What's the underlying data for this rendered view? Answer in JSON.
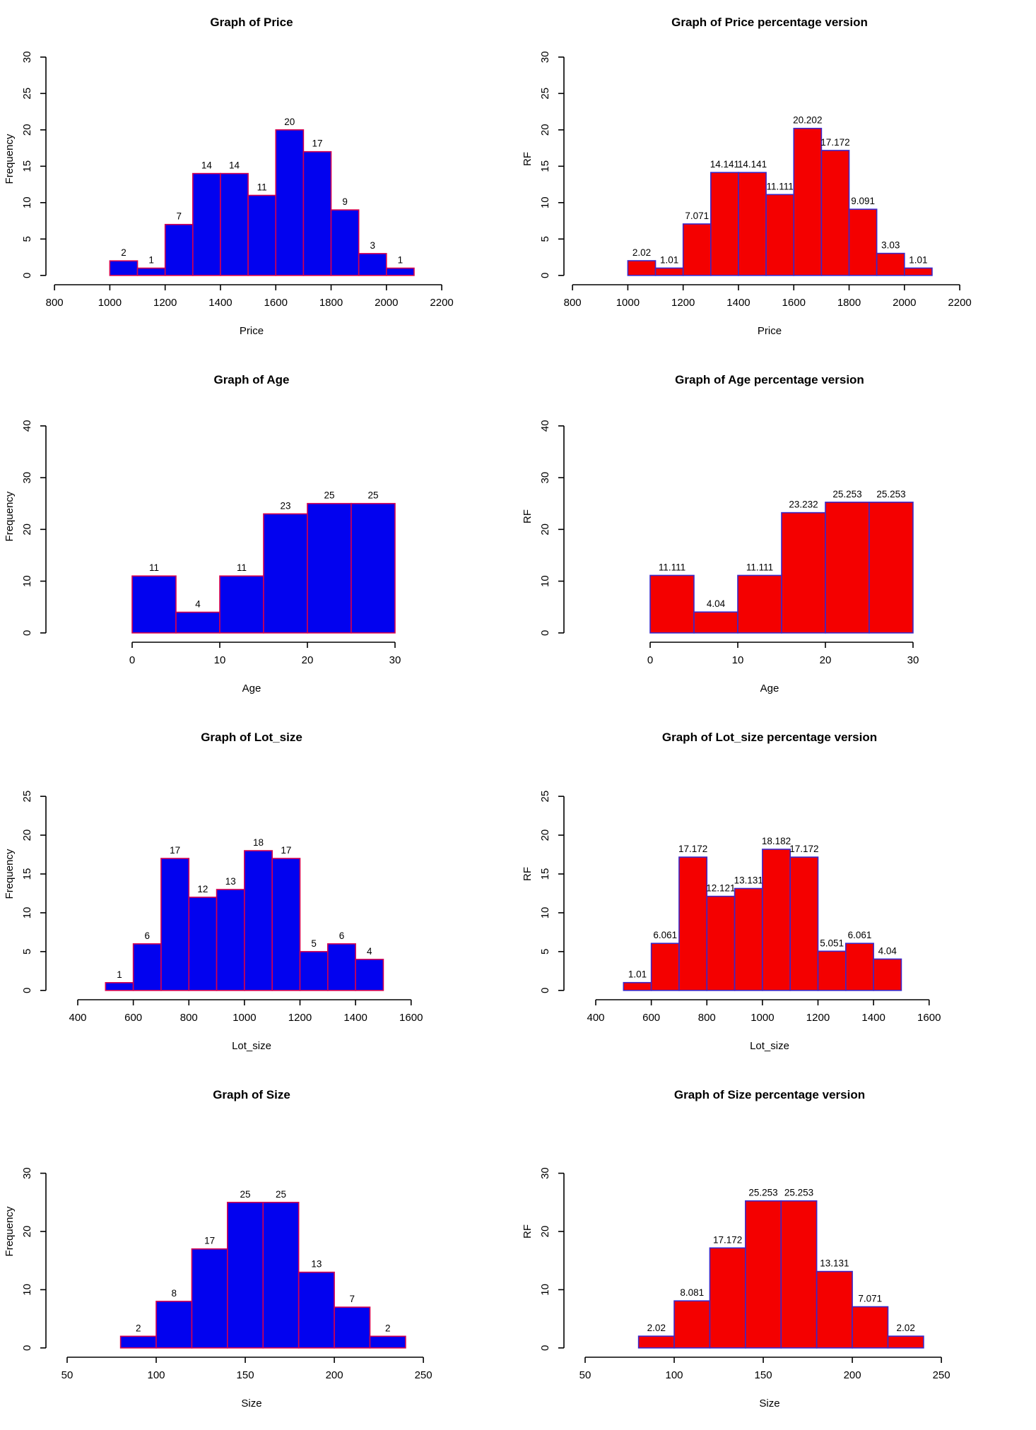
{
  "page": {
    "background": "#ffffff",
    "description_colors": {
      "blue_bar_fill": "#0202EF",
      "blue_bar_border": "#D4004F",
      "red_bar_fill": "#F40000",
      "red_bar_border": "#3B28C8",
      "axis_color": "#000000"
    }
  },
  "chart_data": {
    "layout": {
      "rows": 4,
      "cols": 2
    },
    "charts": [
      {
        "type": "bar",
        "title": "Graph of Price",
        "xlabel": "Price",
        "ylabel": "Frequency",
        "fill": "#0202EF",
        "border": "#D4004F",
        "bins": {
          "start": 1000,
          "width": 100
        },
        "values": [
          2,
          1,
          7,
          14,
          14,
          11,
          20,
          17,
          9,
          3,
          1
        ],
        "bar_labels": [
          "2",
          "1",
          "7",
          "14",
          "14",
          "11",
          "20",
          "17",
          "9",
          "3",
          "1"
        ],
        "x_ticks": [
          800,
          1000,
          1200,
          1400,
          1600,
          1800,
          2000,
          2200
        ],
        "y_ticks": [
          0,
          5,
          10,
          15,
          20,
          25,
          30
        ],
        "x_range": [
          769,
          2256
        ],
        "y_range": [
          -1.28,
          33.28
        ],
        "xlim": [
          800,
          2200
        ],
        "ylim": [
          0,
          32
        ],
        "grid": false,
        "legend": "none"
      },
      {
        "type": "bar",
        "title": "Graph of Price percentage version",
        "xlabel": "Price",
        "ylabel": "RF",
        "fill": "#F40000",
        "border": "#3B28C8",
        "bins": {
          "start": 1000,
          "width": 100
        },
        "values": [
          2.02,
          1.01,
          7.071,
          14.141,
          14.141,
          11.111,
          20.202,
          17.172,
          9.091,
          3.03,
          1.01
        ],
        "bar_labels": [
          "2.02",
          "1.01",
          "7.071",
          "14.141",
          "14.141",
          "11.111",
          "20.202",
          "17.172",
          "9.091",
          "3.03",
          "1.01"
        ],
        "x_ticks": [
          800,
          1000,
          1200,
          1400,
          1600,
          1800,
          2000,
          2200
        ],
        "y_ticks": [
          0,
          5,
          10,
          15,
          20,
          25,
          30
        ],
        "x_range": [
          769,
          2256
        ],
        "y_range": [
          -1.28,
          33.28
        ],
        "xlim": [
          800,
          2200
        ],
        "ylim": [
          0,
          32
        ],
        "grid": false,
        "legend": "none"
      },
      {
        "type": "bar",
        "title": "Graph of Age",
        "xlabel": "Age",
        "ylabel": "Frequency",
        "fill": "#0202EF",
        "border": "#D4004F",
        "bins": {
          "start": 0,
          "width": 5
        },
        "values": [
          11,
          4,
          11,
          23,
          25,
          25
        ],
        "bar_labels": [
          "11",
          "4",
          "11",
          "23",
          "25",
          "25"
        ],
        "x_ticks": [
          0,
          10,
          20,
          30
        ],
        "y_ticks": [
          0,
          10,
          20,
          30,
          40
        ],
        "x_range": [
          -9.84,
          37.1
        ],
        "y_range": [
          -1.8,
          46.8
        ],
        "xlim": [
          0,
          30
        ],
        "ylim": [
          0,
          45
        ],
        "grid": false,
        "legend": "none"
      },
      {
        "type": "bar",
        "title": "Graph of Age percentage version",
        "xlabel": "Age",
        "ylabel": "RF",
        "fill": "#F40000",
        "border": "#3B28C8",
        "bins": {
          "start": 0,
          "width": 5
        },
        "values": [
          11.111,
          4.04,
          11.111,
          23.232,
          25.253,
          25.253
        ],
        "bar_labels": [
          "11.111",
          "4.04",
          "11.111",
          "23.232",
          "25.253",
          "25.253"
        ],
        "x_ticks": [
          0,
          10,
          20,
          30
        ],
        "y_ticks": [
          0,
          10,
          20,
          30,
          40
        ],
        "x_range": [
          -9.84,
          37.1
        ],
        "y_range": [
          -1.8,
          46.8
        ],
        "xlim": [
          0,
          30
        ],
        "ylim": [
          0,
          45
        ],
        "grid": false,
        "legend": "none"
      },
      {
        "type": "bar",
        "title": "Graph of Lot_size",
        "xlabel": "Lot_size",
        "ylabel": "Frequency",
        "fill": "#0202EF",
        "border": "#D4004F",
        "bins": {
          "start": 500,
          "width": 100
        },
        "values": [
          1,
          6,
          17,
          12,
          13,
          18,
          17,
          5,
          6,
          4
        ],
        "bar_labels": [
          "1",
          "6",
          "17",
          "12",
          "13",
          "18",
          "17",
          "5",
          "6",
          "4"
        ],
        "x_ticks": [
          400,
          600,
          800,
          1000,
          1200,
          1400,
          1600
        ],
        "y_ticks": [
          0,
          5,
          10,
          15,
          20,
          25
        ],
        "x_range": [
          285.5,
          1766
        ],
        "y_range": [
          -1.2,
          31.2
        ],
        "xlim": [
          400,
          1600
        ],
        "ylim": [
          0,
          30
        ],
        "grid": false,
        "legend": "none"
      },
      {
        "type": "bar",
        "title": "Graph of Lot_size percentage version",
        "xlabel": "Lot_size",
        "ylabel": "RF",
        "fill": "#F40000",
        "border": "#3B28C8",
        "bins": {
          "start": 500,
          "width": 100
        },
        "values": [
          1.01,
          6.061,
          17.172,
          12.121,
          13.131,
          18.182,
          17.172,
          5.051,
          6.061,
          4.04
        ],
        "bar_labels": [
          "1.01",
          "6.061",
          "17.172",
          "12.121",
          "13.131",
          "18.182",
          "17.172",
          "5.051",
          "6.061",
          "4.04"
        ],
        "x_ticks": [
          400,
          600,
          800,
          1000,
          1200,
          1400,
          1600
        ],
        "y_ticks": [
          0,
          5,
          10,
          15,
          20,
          25
        ],
        "x_range": [
          285.5,
          1766
        ],
        "y_range": [
          -1.2,
          31.2
        ],
        "xlim": [
          400,
          1600
        ],
        "ylim": [
          0,
          30
        ],
        "grid": false,
        "legend": "none"
      },
      {
        "type": "bar",
        "title": "Graph of Size",
        "xlabel": "Size",
        "ylabel": "Frequency",
        "fill": "#0202EF",
        "border": "#D4004F",
        "bins": {
          "start": 80,
          "width": 20
        },
        "values": [
          2,
          8,
          17,
          25,
          25,
          13,
          7,
          2
        ],
        "bar_labels": [
          "2",
          "8",
          "17",
          "25",
          "25",
          "13",
          "7",
          "2"
        ],
        "x_ticks": [
          50,
          100,
          150,
          200,
          250
        ],
        "y_ticks": [
          0,
          10,
          20,
          30
        ],
        "x_range": [
          38.1,
          269
        ],
        "y_range": [
          -1.6,
          41.6
        ],
        "xlim": [
          50,
          250
        ],
        "ylim": [
          0,
          40
        ],
        "grid": false,
        "legend": "none"
      },
      {
        "type": "bar",
        "title": "Graph of Size percentage version",
        "xlabel": "Size",
        "ylabel": "RF",
        "fill": "#F40000",
        "border": "#3B28C8",
        "bins": {
          "start": 80,
          "width": 20
        },
        "values": [
          2.02,
          8.081,
          17.172,
          25.253,
          25.253,
          13.131,
          7.071,
          2.02
        ],
        "bar_labels": [
          "2.02",
          "8.081",
          "17.172",
          "25.253",
          "25.253",
          "13.131",
          "7.071",
          "2.02"
        ],
        "x_ticks": [
          50,
          100,
          150,
          200,
          250
        ],
        "y_ticks": [
          0,
          10,
          20,
          30
        ],
        "x_range": [
          38.1,
          269
        ],
        "y_range": [
          -1.6,
          41.6
        ],
        "xlim": [
          50,
          250
        ],
        "ylim": [
          0,
          40
        ],
        "grid": false,
        "legend": "none"
      }
    ]
  }
}
